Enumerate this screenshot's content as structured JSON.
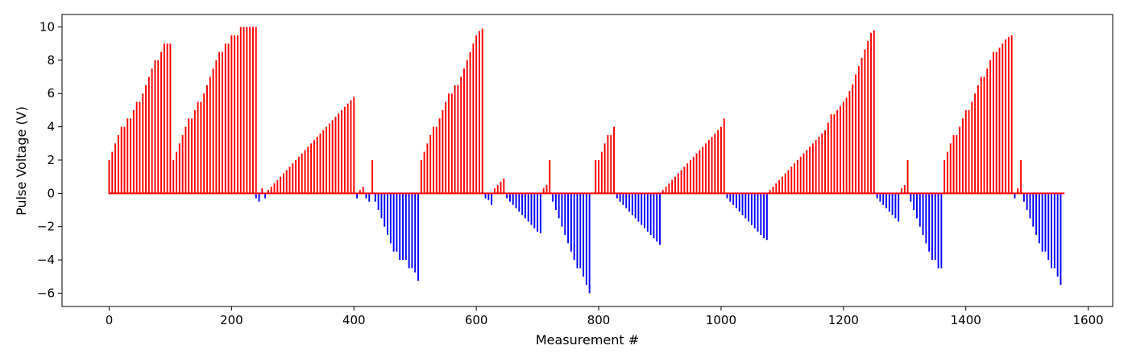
{
  "chart_data": {
    "type": "bar",
    "title": "",
    "xlabel": "Measurement #",
    "ylabel": "Pulse Voltage (V)",
    "xlim": [
      -77,
      1640
    ],
    "ylim": [
      -6.8,
      10.75
    ],
    "xticks": [
      0,
      200,
      400,
      600,
      800,
      1000,
      1200,
      1400,
      1600
    ],
    "yticks": [
      -6,
      -4,
      -2,
      0,
      2,
      4,
      6,
      8,
      10
    ],
    "xtick_labels": [
      "0",
      "200",
      "400",
      "600",
      "800",
      "1000",
      "1200",
      "1400",
      "1600"
    ],
    "ytick_labels": [
      "−6",
      "−4",
      "−2",
      "0",
      "2",
      "4",
      "6",
      "8",
      "10"
    ],
    "grid": false,
    "colors": {
      "positive": "#ff0000",
      "negative": "#0000ff"
    },
    "segments": [
      {
        "x_start": 0,
        "step": 5,
        "values": [
          2,
          2.5,
          3,
          3.5,
          4,
          4,
          4.5,
          4.5,
          5,
          5.5,
          5.5,
          6,
          6.5,
          7,
          7.5,
          8,
          8,
          8.5,
          9,
          9,
          9
        ]
      },
      {
        "x_start": 105,
        "step": 5,
        "values": [
          2,
          2.5,
          3,
          3.5,
          4,
          4.5,
          4.5,
          5,
          5.5,
          5.5,
          6,
          6.5,
          7,
          7.5,
          8,
          8.5,
          8.5,
          9,
          9,
          9.5,
          9.5,
          9.5,
          10,
          10,
          10,
          10,
          10,
          10
        ]
      },
      {
        "x_start": 240,
        "step": 5,
        "values": [
          -0.3,
          -0.5,
          0.3,
          -0.3,
          0.2,
          0.4,
          0.6,
          0.8,
          1,
          1.2,
          1.4,
          1.6,
          1.8,
          2,
          2.2,
          2.4,
          2.6,
          2.8,
          3,
          3.2,
          3.4,
          3.6,
          3.8,
          4,
          4.2,
          4.4,
          4.6,
          4.8,
          5,
          5.2,
          5.4,
          5.6,
          5.8
        ]
      },
      {
        "x_start": 405,
        "step": 5,
        "values": [
          -0.3,
          0.2,
          0.4,
          -0.3,
          -0.5,
          2,
          -0.5,
          -1,
          -1.5,
          -2,
          -2.5,
          -3,
          -3.5,
          -3.5,
          -4,
          -4,
          -4,
          -4.5,
          -4.5,
          -4.75,
          -5.25
        ]
      },
      {
        "x_start": 510,
        "step": 5,
        "values": [
          2,
          2.5,
          3,
          3.5,
          4,
          4,
          4.5,
          5,
          5.5,
          6,
          6,
          6.5,
          6.5,
          7,
          7.5,
          8,
          8.5,
          9,
          9.5,
          9.75,
          9.9
        ]
      },
      {
        "x_start": 615,
        "step": 5,
        "values": [
          -0.3,
          -0.4,
          -0.7,
          0.3,
          0.5,
          0.7,
          0.9,
          -0.3,
          -0.5,
          -0.7,
          -0.9,
          -1.1,
          -1.3,
          -1.5,
          -1.7,
          -1.9,
          -2.1,
          -2.3,
          -2.4,
          0.3,
          0.5,
          2,
          -0.5,
          -1,
          -1.5,
          -2,
          -2.5,
          -3,
          -3.5,
          -4,
          -4.5,
          -4.5,
          -5,
          -5.5,
          -6
        ]
      },
      {
        "x_start": 795,
        "step": 5,
        "values": [
          2,
          2,
          2.5,
          3,
          3.5,
          3.5,
          4
        ]
      },
      {
        "x_start": 830,
        "step": 5,
        "values": [
          -0.3,
          -0.5,
          -0.7,
          -0.9,
          -1.1,
          -1.3,
          -1.5,
          -1.7,
          -1.9,
          -2.1,
          -2.3,
          -2.5,
          -2.7,
          -2.9,
          -3.1,
          0.2,
          0.4,
          0.6,
          0.8,
          1,
          1.2,
          1.4,
          1.6,
          1.8,
          2,
          2.2,
          2.4,
          2.6,
          2.8,
          3,
          3.2,
          3.4,
          3.6,
          3.8,
          4,
          4.5
        ]
      },
      {
        "x_start": 1010,
        "step": 5,
        "values": [
          -0.3,
          -0.5,
          -0.7,
          -0.9,
          -1.1,
          -1.3,
          -1.5,
          -1.7,
          -1.9,
          -2.1,
          -2.3,
          -2.5,
          -2.7,
          -2.8
        ]
      },
      {
        "x_start": 1080,
        "step": 5,
        "values": [
          0.2,
          0.4,
          0.6,
          0.8,
          1,
          1.2,
          1.4,
          1.6,
          1.8,
          2,
          2.2,
          2.4,
          2.6,
          2.8,
          3,
          3.2,
          3.4,
          3.6,
          3.8,
          4.25,
          4.75,
          4.75,
          5,
          5.25,
          5.5,
          5.75,
          6.15,
          6.55,
          7.15,
          7.65,
          8.15,
          8.65,
          9.15,
          9.65,
          9.8
        ]
      },
      {
        "x_start": 1255,
        "step": 5,
        "values": [
          -0.3,
          -0.5,
          -0.7,
          -0.9,
          -1.1,
          -1.3,
          -1.5,
          -1.7,
          0.3,
          0.5,
          2,
          -0.5,
          -1,
          -1.5,
          -2,
          -2.5,
          -3,
          -3.5,
          -4,
          -4,
          -4.5,
          -4.5
        ]
      },
      {
        "x_start": 1365,
        "step": 5,
        "values": [
          2,
          2.5,
          3,
          3.5,
          3.5,
          4,
          4.5,
          5,
          5,
          5.5,
          6,
          6.5,
          7,
          7,
          7.5,
          8,
          8.5,
          8.5,
          8.75,
          9,
          9.25,
          9.4,
          9.5
        ]
      },
      {
        "x_start": 1480,
        "step": 5,
        "values": [
          -0.3,
          0.3,
          2,
          -0.5,
          -1,
          -1.5,
          -2,
          -2.5,
          -3,
          -3.5,
          -3.5,
          -4,
          -4.5,
          -4.5,
          -5,
          -5.5,
          0
        ]
      }
    ]
  }
}
